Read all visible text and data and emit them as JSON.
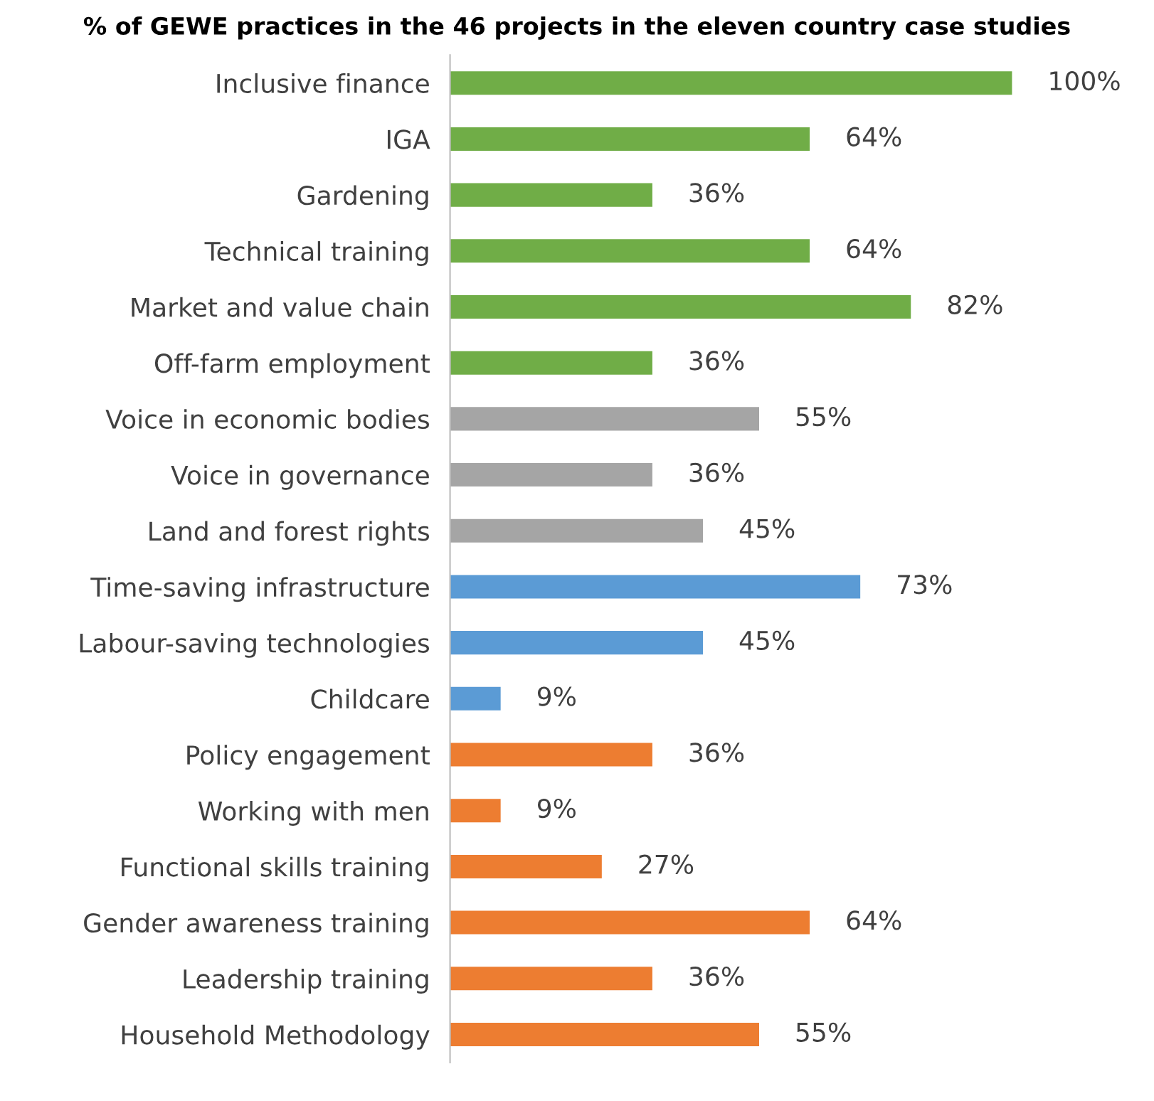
{
  "chart_data": {
    "type": "bar",
    "orientation": "horizontal",
    "title": "% of GEWE practices in the 46 projects in the eleven country case studies",
    "categories": [
      "Inclusive finance",
      "IGA",
      "Gardening",
      "Technical training",
      "Market and value chain",
      "Off-farm employment",
      "Voice in economic bodies",
      "Voice in governance",
      "Land and forest rights",
      "Time-saving infrastructure",
      "Labour-saving technologies",
      "Childcare",
      "Policy engagement",
      "Working with men",
      "Functional skills training",
      "Gender awareness training",
      "Leadership training",
      "Household Methodology"
    ],
    "values": [
      100,
      64,
      36,
      64,
      82,
      36,
      55,
      36,
      45,
      73,
      45,
      9,
      36,
      9,
      27,
      64,
      36,
      55
    ],
    "colors": [
      "#70ad47",
      "#70ad47",
      "#70ad47",
      "#70ad47",
      "#70ad47",
      "#70ad47",
      "#a5a5a5",
      "#a5a5a5",
      "#a5a5a5",
      "#5b9bd5",
      "#5b9bd5",
      "#5b9bd5",
      "#ed7d31",
      "#ed7d31",
      "#ed7d31",
      "#ed7d31",
      "#ed7d31",
      "#ed7d31"
    ],
    "value_labels": [
      "100%",
      "64%",
      "36%",
      "64%",
      "82%",
      "36%",
      "55%",
      "36%",
      "45%",
      "73%",
      "45%",
      "9%",
      "36%",
      "9%",
      "27%",
      "64%",
      "36%",
      "55%"
    ],
    "grid": false,
    "legend": false,
    "tick_labels": "y"
  }
}
